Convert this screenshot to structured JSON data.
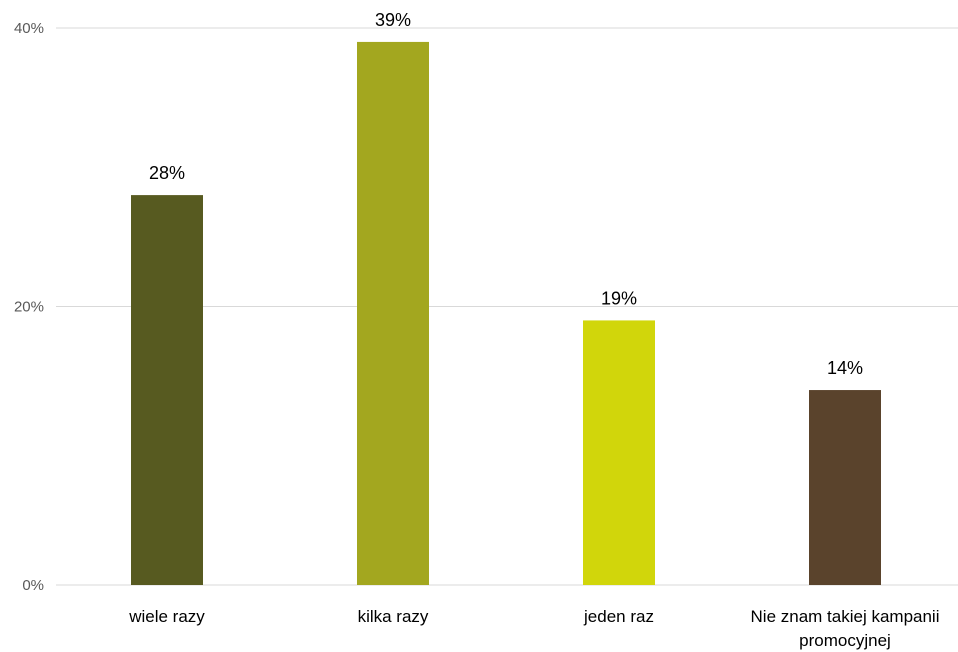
{
  "chart_data": {
    "type": "bar",
    "categories": [
      [
        "wiele razy"
      ],
      [
        "kilka razy"
      ],
      [
        "jeden raz"
      ],
      [
        "Nie znam takiej kampanii",
        "promocyjnej"
      ]
    ],
    "values": [
      28,
      39,
      19,
      14
    ],
    "data_labels": [
      "28%",
      "39%",
      "19%",
      "14%"
    ],
    "bar_colors": [
      "#575A20",
      "#A3A71F",
      "#D1D60B",
      "#5A432C"
    ],
    "y_ticks": [
      0,
      20,
      40
    ],
    "y_tick_labels": [
      "0%",
      "20%",
      "40%"
    ],
    "ylim": [
      0,
      40
    ],
    "grid": true,
    "gridline_color": "#d9d9d9",
    "title": "",
    "xlabel": "",
    "ylabel": "",
    "legend": "none"
  }
}
